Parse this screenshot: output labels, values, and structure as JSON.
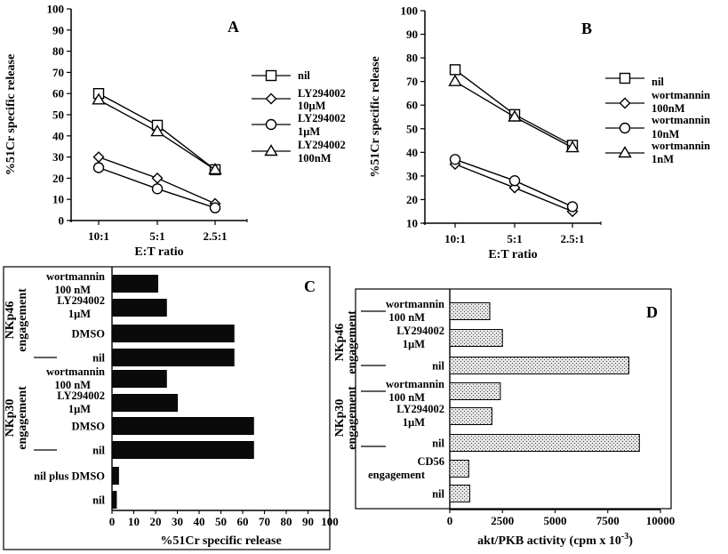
{
  "chart_data": [
    {
      "panel": "A",
      "type": "line",
      "ylabel": "%51Cr specific release",
      "xlabel": "E:T ratio",
      "categories": [
        "10:1",
        "5:1",
        "2.5:1"
      ],
      "ylim": [
        0,
        100
      ],
      "yticks": [
        0,
        10,
        20,
        30,
        40,
        50,
        60,
        70,
        80,
        90,
        100
      ],
      "series": [
        {
          "name": "nil",
          "marker": "square",
          "values": [
            60,
            45,
            24
          ]
        },
        {
          "name": "LY294002",
          "name2": "10μM",
          "marker": "diamond",
          "values": [
            30,
            20,
            8
          ]
        },
        {
          "name": "LY294002",
          "name2": "1μM",
          "marker": "circle",
          "values": [
            25,
            15,
            6
          ]
        },
        {
          "name": "LY294002",
          "name2": "100nM",
          "marker": "triangle",
          "values": [
            57,
            42,
            24
          ]
        }
      ]
    },
    {
      "panel": "B",
      "type": "line",
      "ylabel": "%51Cr specific release",
      "xlabel": "E:T ratio",
      "categories": [
        "10:1",
        "5:1",
        "2.5:1"
      ],
      "ylim": [
        10,
        100
      ],
      "yticks": [
        10,
        20,
        30,
        40,
        50,
        60,
        70,
        80,
        90,
        100
      ],
      "series": [
        {
          "name": "nil",
          "marker": "square",
          "values": [
            75,
            56,
            43
          ]
        },
        {
          "name": "wortmannin",
          "name2": "100nM",
          "marker": "diamond",
          "values": [
            35,
            25,
            15
          ]
        },
        {
          "name": "wortmannin",
          "name2": "10nM",
          "marker": "circle",
          "values": [
            37,
            28,
            17
          ]
        },
        {
          "name": "wortmannin",
          "name2": "1nM",
          "marker": "triangle",
          "values": [
            70,
            55,
            42
          ]
        }
      ]
    },
    {
      "panel": "C",
      "type": "bar",
      "orientation": "horizontal",
      "xlabel": "%51Cr specific release",
      "xlim": [
        0,
        100
      ],
      "xticks": [
        0,
        10,
        20,
        30,
        40,
        50,
        60,
        70,
        80,
        90,
        100
      ],
      "bar_color": "#0a0a0a",
      "categories": [
        {
          "label": [
            "wortmannin",
            "100 nM"
          ],
          "value": 21
        },
        {
          "label": [
            "LY294002",
            "1μM"
          ],
          "value": 25
        },
        {
          "label": [
            "DMSO"
          ],
          "value": 56
        },
        {
          "label": [
            "nil"
          ],
          "value": 56
        },
        {
          "label": [
            "wortmannin",
            "100 nM"
          ],
          "value": 25
        },
        {
          "label": [
            "LY294002",
            "1μM"
          ],
          "value": 30
        },
        {
          "label": [
            "DMSO"
          ],
          "value": 65
        },
        {
          "label": [
            "nil"
          ],
          "value": 65
        },
        {
          "label": [
            "nil plus DMSO"
          ],
          "value": 3
        },
        {
          "label": [
            "nil"
          ],
          "value": 2
        }
      ],
      "groups": [
        {
          "label": [
            "NKp46",
            "engagement"
          ]
        },
        {
          "label": [
            "NKp30",
            "engagement"
          ]
        }
      ]
    },
    {
      "panel": "D",
      "type": "bar",
      "orientation": "horizontal",
      "xlabel": "akt/PKB activity (cpm x 10",
      "xlabel_exp": "-3",
      "xlabel_end": ")",
      "xlim": [
        0,
        10000
      ],
      "xticks": [
        0,
        2500,
        5000,
        7500,
        10000
      ],
      "bar_fill": "stippled",
      "categories": [
        {
          "label": [
            "wortmannin",
            "100 nM"
          ],
          "value": 1900
        },
        {
          "label": [
            "LY294002",
            "1μM"
          ],
          "value": 2500
        },
        {
          "label": [
            "nil"
          ],
          "value": 8500
        },
        {
          "label": [
            "wortmannin",
            "100 nM"
          ],
          "value": 2400
        },
        {
          "label": [
            "LY294002",
            "1μM"
          ],
          "value": 2000
        },
        {
          "label": [
            "nil"
          ],
          "value": 9000
        },
        {
          "label": [
            "CD56",
            "engagement"
          ],
          "value": 900
        },
        {
          "label": [
            "nil"
          ],
          "value": 950
        }
      ],
      "groups": [
        {
          "label": [
            "NKp46",
            "engagement"
          ]
        },
        {
          "label": [
            "NKp30",
            "engagement"
          ]
        }
      ]
    }
  ]
}
